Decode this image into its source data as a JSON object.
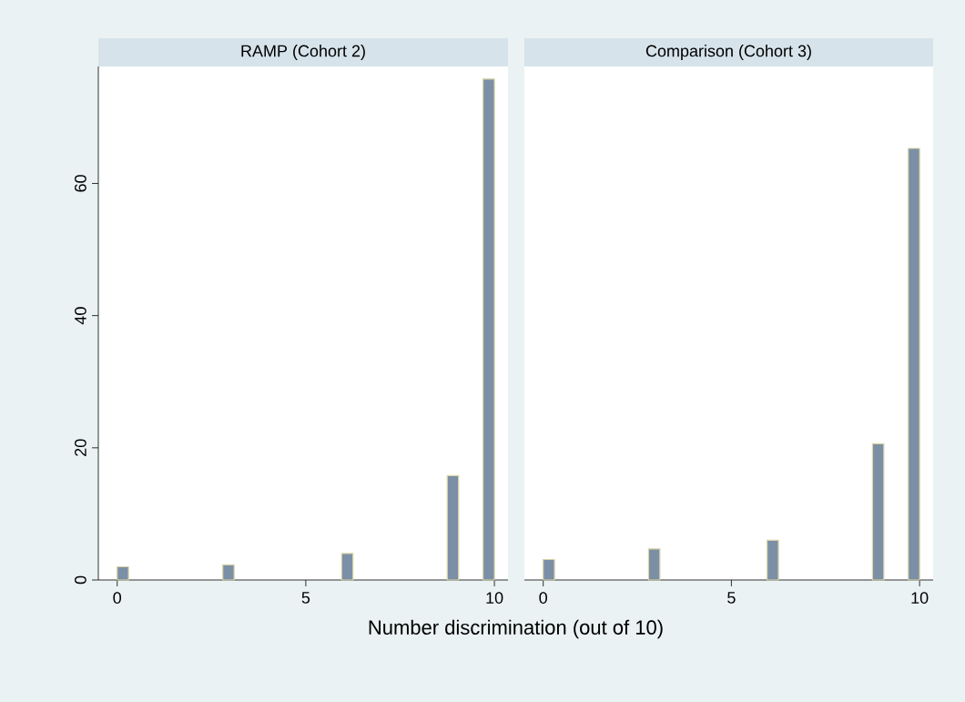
{
  "chart_data": [
    {
      "type": "bar",
      "title": "RAMP (Cohort 2)",
      "xlabel": "Number discrimination (out of 10)",
      "x": [
        0.15,
        2.95,
        6.1,
        8.9,
        9.85
      ],
      "values": [
        2.0,
        2.3,
        4.0,
        15.8,
        75.8
      ],
      "color": "#7b8fa6",
      "xlim": [
        -0.5,
        10.36
      ],
      "xticks": [
        0,
        5,
        10
      ],
      "ylim": [
        0,
        77.7
      ],
      "yticks": [
        0,
        20,
        40,
        60
      ]
    },
    {
      "type": "bar",
      "title": "Comparison (Cohort 3)",
      "x": [
        0.15,
        2.95,
        6.1,
        8.9,
        9.85
      ],
      "values": [
        3.1,
        4.7,
        6.0,
        20.6,
        65.3
      ],
      "color": "#7b8fa6",
      "xlim": [
        -0.5,
        10.36
      ],
      "xticks": [
        0,
        5,
        10
      ],
      "ylim": [
        0,
        77.7
      ],
      "tick_labels": "x"
    }
  ]
}
